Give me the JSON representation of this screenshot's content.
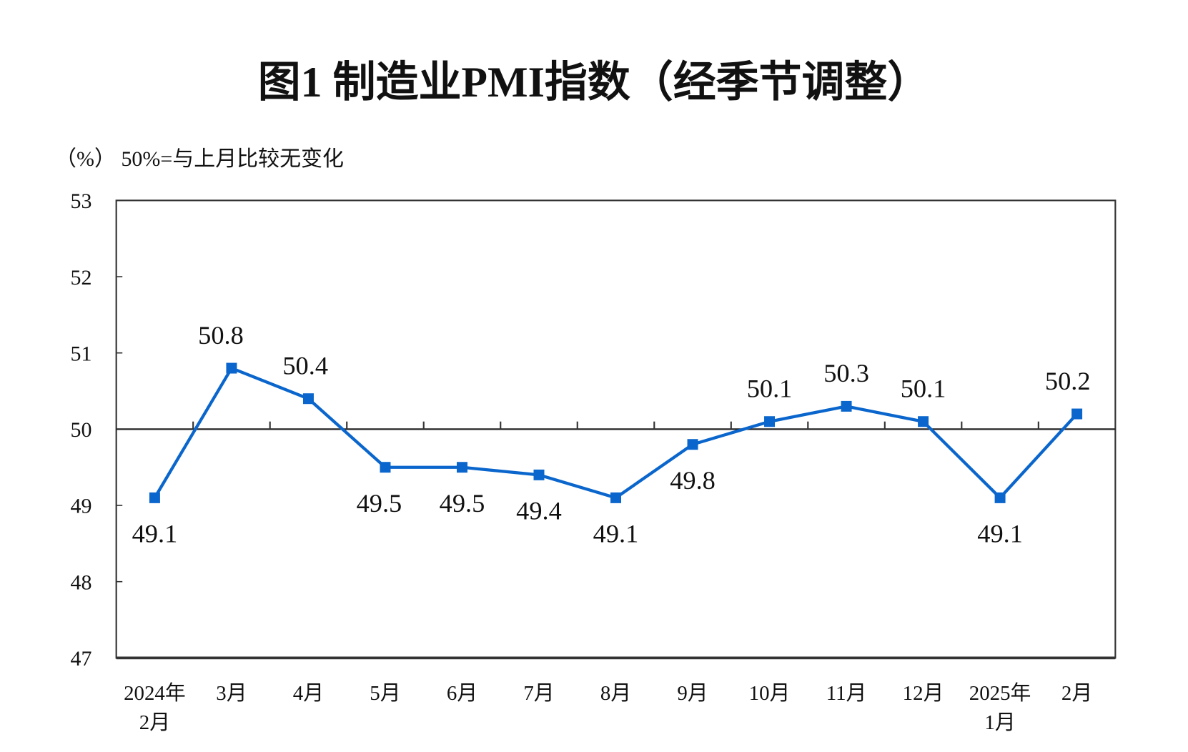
{
  "chart_data": {
    "type": "line",
    "title": "图1  制造业PMI指数（经季节调整）",
    "ylabel": "（%）  50%=与上月比较无变化",
    "categories": [
      [
        "2024年",
        "2月"
      ],
      [
        "3月"
      ],
      [
        "4月"
      ],
      [
        "5月"
      ],
      [
        "6月"
      ],
      [
        "7月"
      ],
      [
        "8月"
      ],
      [
        "9月"
      ],
      [
        "10月"
      ],
      [
        "11月"
      ],
      [
        "12月"
      ],
      [
        "2025年",
        "1月"
      ],
      [
        "2月"
      ]
    ],
    "values": [
      49.1,
      50.8,
      50.4,
      49.5,
      49.5,
      49.4,
      49.1,
      49.8,
      50.1,
      50.3,
      50.1,
      49.1,
      50.2
    ],
    "data_labels": [
      "49.1",
      "50.8",
      "50.4",
      "49.5",
      "49.5",
      "49.4",
      "49.1",
      "49.8",
      "50.1",
      "50.3",
      "50.1",
      "49.1",
      "50.2"
    ],
    "ylim": [
      47,
      53
    ],
    "yticks": [
      "47",
      "48",
      "49",
      "50",
      "51",
      "52",
      "53"
    ],
    "reference_line": 50,
    "grid": false,
    "line_color": "#0a66cc"
  }
}
